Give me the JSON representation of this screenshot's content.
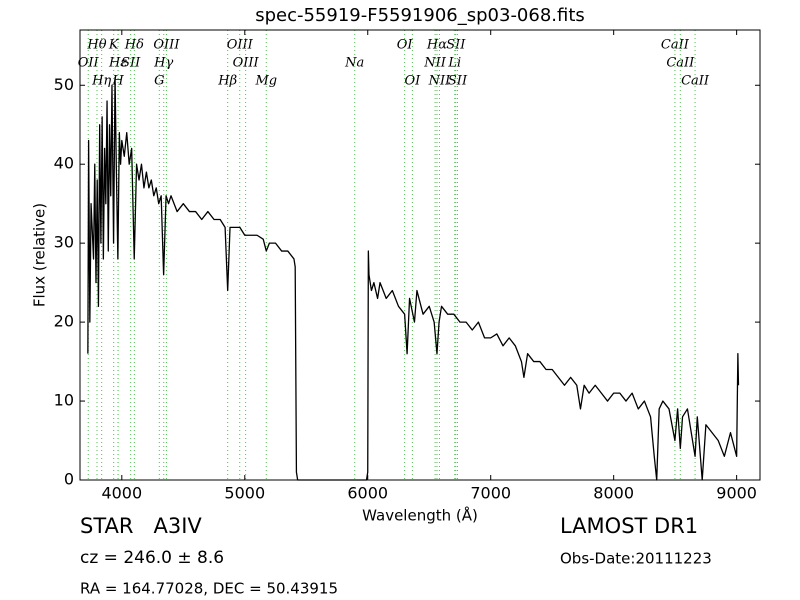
{
  "chart_data": {
    "type": "line",
    "title": "spec-55919-F5591906_sp03-068.fits",
    "x_label": "Wavelength (Å)",
    "y_label": "Flux (relative)",
    "xlim": [
      3660,
      9190
    ],
    "ylim": [
      0,
      57
    ],
    "xticks": [
      4000,
      5000,
      6000,
      7000,
      8000,
      9000
    ],
    "yticks": [
      0,
      10,
      20,
      30,
      40,
      50
    ],
    "color": "#000000",
    "line_color": "#55bb55",
    "x": [
      3724,
      3730,
      3740,
      3750,
      3770,
      3780,
      3790,
      3800,
      3810,
      3820,
      3830,
      3840,
      3850,
      3860,
      3870,
      3880,
      3890,
      3900,
      3910,
      3920,
      3933,
      3945,
      3955,
      3968,
      3980,
      3990,
      4000,
      4020,
      4040,
      4060,
      4080,
      4101,
      4120,
      4140,
      4160,
      4180,
      4200,
      4220,
      4240,
      4260,
      4280,
      4300,
      4320,
      4340,
      4360,
      4380,
      4400,
      4450,
      4500,
      4550,
      4600,
      4650,
      4700,
      4750,
      4800,
      4840,
      4861,
      4880,
      4920,
      4960,
      5000,
      5050,
      5100,
      5150,
      5175,
      5200,
      5250,
      5300,
      5350,
      5400,
      5410,
      5420,
      5430,
      5990,
      6000,
      6005,
      6010,
      6030,
      6050,
      6080,
      6100,
      6150,
      6200,
      6250,
      6300,
      6320,
      6340,
      6380,
      6400,
      6450,
      6500,
      6540,
      6563,
      6580,
      6600,
      6650,
      6700,
      6750,
      6800,
      6850,
      6900,
      6950,
      7000,
      7050,
      7100,
      7150,
      7200,
      7250,
      7270,
      7300,
      7350,
      7400,
      7450,
      7500,
      7550,
      7600,
      7650,
      7700,
      7730,
      7760,
      7800,
      7850,
      7900,
      7950,
      8000,
      8050,
      8100,
      8150,
      8200,
      8250,
      8300,
      8330,
      8350,
      8370,
      8400,
      8450,
      8498,
      8520,
      8542,
      8560,
      8600,
      8662,
      8680,
      8720,
      8750,
      8800,
      8850,
      8900,
      8950,
      9000,
      9010,
      9015
    ],
    "values": [
      16,
      43,
      20,
      35,
      28,
      40,
      25,
      38,
      22,
      45,
      30,
      46,
      28,
      42,
      35,
      48,
      29,
      45,
      36,
      50,
      30,
      51,
      40,
      28,
      44,
      40,
      43,
      41,
      44,
      40,
      42,
      28,
      40,
      38,
      40,
      37,
      39,
      37,
      38,
      36,
      37,
      35,
      36,
      26,
      36,
      35,
      36,
      34,
      35,
      34,
      34,
      33,
      34,
      33,
      33,
      32,
      24,
      32,
      32,
      32,
      31,
      31,
      31,
      30.5,
      29,
      30,
      30,
      29,
      29,
      28,
      27,
      1,
      0,
      0,
      1,
      29,
      26,
      24,
      25,
      23,
      25,
      23,
      24,
      22,
      21,
      16,
      23,
      20,
      24,
      21,
      22,
      20,
      16,
      20,
      22,
      21,
      21,
      20,
      20,
      19,
      20,
      18,
      18,
      18.5,
      17,
      18,
      17,
      15,
      13,
      16,
      15,
      15,
      14,
      14,
      13,
      12,
      13,
      12,
      9,
      12,
      11,
      12,
      11,
      10,
      11,
      11,
      10,
      11,
      9,
      10,
      8,
      3,
      0,
      9,
      10,
      9,
      5,
      9,
      4,
      8,
      9,
      3,
      8,
      0,
      7,
      6,
      5,
      3,
      6,
      3,
      16,
      12
    ],
    "lines": [
      {
        "label": "OII",
        "x": 3727
      },
      {
        "label": "Hθ",
        "x": 3798
      },
      {
        "label": "Hη",
        "x": 3836
      },
      {
        "label": "K",
        "x": 3934
      },
      {
        "label": "H",
        "x": 3969
      },
      {
        "label": "Hε",
        "x": 3970
      },
      {
        "label": "SII",
        "x": 4072
      },
      {
        "label": "Hδ",
        "x": 4102
      },
      {
        "label": "G",
        "x": 4305
      },
      {
        "label": "Hγ",
        "x": 4341
      },
      {
        "label": "OIII",
        "x": 4363
      },
      {
        "label": "Hβ",
        "x": 4861
      },
      {
        "label": "OIII",
        "x": 4959
      },
      {
        "label": "OIII",
        "x": 5007
      },
      {
        "label": "Mg",
        "x": 5175
      },
      {
        "label": "Na",
        "x": 5894
      },
      {
        "label": "OI",
        "x": 6300
      },
      {
        "label": "OI",
        "x": 6363
      },
      {
        "label": "NII",
        "x": 6548
      },
      {
        "label": "Hα",
        "x": 6563
      },
      {
        "label": "NII",
        "x": 6583
      },
      {
        "label": "Li",
        "x": 6708
      },
      {
        "label": "SII",
        "x": 6716
      },
      {
        "label": "SII",
        "x": 6730
      },
      {
        "label": "CaII",
        "x": 8498
      },
      {
        "label": "CaII",
        "x": 8542
      },
      {
        "label": "CaII",
        "x": 8662
      }
    ]
  },
  "info": {
    "class": "STAR   A3IV",
    "survey": "LAMOST DR1",
    "redshift": "cz = 246.0 ± 8.6",
    "date": "Obs-Date:20111223",
    "coords": "RA = 164.77028, DEC = 50.43915"
  }
}
